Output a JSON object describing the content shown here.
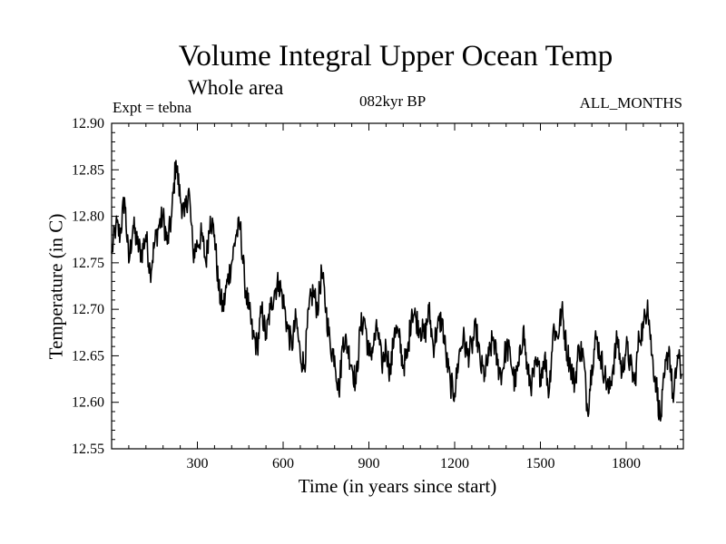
{
  "chart_data": {
    "type": "line",
    "title": "Volume Integral Upper Ocean Temp",
    "subtitle": "Whole area",
    "annotations": {
      "experiment": "Expt = tebna",
      "period": "082kyr BP",
      "months": "ALL_MONTHS"
    },
    "xlabel": "Time (in years since start)",
    "ylabel": "Temperature (in C)",
    "xlim": [
      0,
      2000
    ],
    "ylim": [
      12.55,
      12.9
    ],
    "xticks": [
      300,
      600,
      900,
      1200,
      1500,
      1800
    ],
    "xtick_labels": [
      "300",
      "600",
      "900",
      "1200",
      "1500",
      "1800"
    ],
    "yticks": [
      12.55,
      12.6,
      12.65,
      12.7,
      12.75,
      12.8,
      12.85,
      12.9
    ],
    "ytick_labels": [
      "12.55",
      "12.60",
      "12.65",
      "12.70",
      "12.75",
      "12.80",
      "12.85",
      "12.90"
    ],
    "grid": false,
    "series": [
      {
        "name": "Volume integral upper ocean temperature",
        "x": [
          0,
          15,
          30,
          45,
          60,
          75,
          90,
          105,
          120,
          135,
          150,
          165,
          180,
          195,
          210,
          225,
          240,
          255,
          270,
          285,
          300,
          315,
          330,
          345,
          360,
          375,
          390,
          405,
          420,
          435,
          450,
          465,
          480,
          495,
          510,
          525,
          540,
          555,
          570,
          585,
          600,
          615,
          630,
          645,
          660,
          675,
          690,
          705,
          720,
          735,
          750,
          765,
          780,
          795,
          810,
          825,
          840,
          855,
          870,
          885,
          900,
          915,
          930,
          945,
          960,
          975,
          990,
          1005,
          1020,
          1035,
          1050,
          1065,
          1080,
          1095,
          1110,
          1125,
          1140,
          1155,
          1170,
          1185,
          1200,
          1215,
          1230,
          1245,
          1260,
          1275,
          1290,
          1305,
          1320,
          1335,
          1350,
          1365,
          1380,
          1395,
          1410,
          1425,
          1440,
          1455,
          1470,
          1485,
          1500,
          1515,
          1530,
          1545,
          1560,
          1575,
          1590,
          1605,
          1620,
          1635,
          1650,
          1665,
          1680,
          1695,
          1710,
          1725,
          1740,
          1755,
          1770,
          1785,
          1800,
          1815,
          1830,
          1845,
          1860,
          1875,
          1890,
          1905,
          1920,
          1935,
          1950,
          1965,
          1980,
          1995
        ],
        "values": [
          12.76,
          12.79,
          12.78,
          12.82,
          12.75,
          12.79,
          12.77,
          12.76,
          12.78,
          12.74,
          12.77,
          12.79,
          12.8,
          12.77,
          12.8,
          12.86,
          12.82,
          12.8,
          12.83,
          12.76,
          12.77,
          12.78,
          12.75,
          12.8,
          12.78,
          12.72,
          12.7,
          12.73,
          12.75,
          12.78,
          12.79,
          12.73,
          12.7,
          12.67,
          12.66,
          12.7,
          12.67,
          12.7,
          12.72,
          12.73,
          12.71,
          12.68,
          12.66,
          12.69,
          12.65,
          12.64,
          12.7,
          12.72,
          12.7,
          12.74,
          12.7,
          12.66,
          12.65,
          12.61,
          12.67,
          12.66,
          12.64,
          12.62,
          12.68,
          12.69,
          12.65,
          12.66,
          12.68,
          12.64,
          12.66,
          12.63,
          12.68,
          12.67,
          12.64,
          12.65,
          12.7,
          12.69,
          12.68,
          12.67,
          12.7,
          12.66,
          12.68,
          12.69,
          12.65,
          12.62,
          12.61,
          12.65,
          12.67,
          12.65,
          12.66,
          12.68,
          12.64,
          12.63,
          12.65,
          12.67,
          12.64,
          12.63,
          12.66,
          12.65,
          12.62,
          12.64,
          12.68,
          12.63,
          12.62,
          12.64,
          12.63,
          12.65,
          12.61,
          12.68,
          12.67,
          12.7,
          12.66,
          12.64,
          12.62,
          12.66,
          12.65,
          12.59,
          12.64,
          12.67,
          12.65,
          12.63,
          12.61,
          12.64,
          12.67,
          12.63,
          12.66,
          12.64,
          12.62,
          12.67,
          12.68,
          12.71,
          12.65,
          12.62,
          12.58,
          12.63,
          12.66,
          12.6,
          12.65,
          12.63
        ]
      }
    ]
  }
}
